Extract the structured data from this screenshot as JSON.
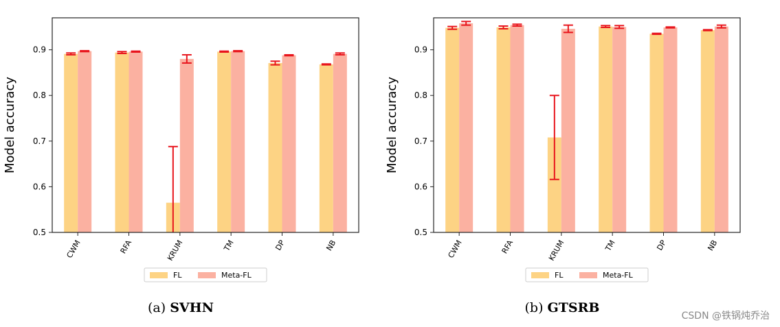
{
  "colors": {
    "fl": "#fdd384",
    "meta_fl": "#fbb1a1",
    "error": "#e8141c"
  },
  "legend_labels": [
    "FL",
    "Meta-FL"
  ],
  "chart_data": [
    {
      "type": "bar",
      "caption_label": "(a)",
      "caption_title": "SVHN",
      "ylabel": "Model accuracy",
      "ylim": [
        0.5,
        0.97
      ],
      "yticks": [
        0.5,
        0.6,
        0.7,
        0.8,
        0.9
      ],
      "legend_position": "bottom-center",
      "categories": [
        "CWM",
        "RFA",
        "KRUM",
        "TM",
        "DP",
        "NB"
      ],
      "series": [
        {
          "name": "FL",
          "values": [
            0.891,
            0.894,
            0.565,
            0.896,
            0.871,
            0.868
          ],
          "errors": [
            0.002,
            0.002,
            0.123,
            0.001,
            0.004,
            0.001
          ]
        },
        {
          "name": "Meta-FL",
          "values": [
            0.897,
            0.896,
            0.88,
            0.897,
            0.888,
            0.891
          ],
          "errors": [
            0.001,
            0.001,
            0.009,
            0.001,
            0.001,
            0.002
          ]
        }
      ]
    },
    {
      "type": "bar",
      "caption_label": "(b)",
      "caption_title": "GTSRB",
      "ylabel": "Model accuracy",
      "ylim": [
        0.5,
        0.97
      ],
      "yticks": [
        0.5,
        0.6,
        0.7,
        0.8,
        0.9
      ],
      "legend_position": "bottom-center",
      "categories": [
        "CWM",
        "RFA",
        "KRUM",
        "TM",
        "DP",
        "NB"
      ],
      "series": [
        {
          "name": "FL",
          "values": [
            0.948,
            0.949,
            0.708,
            0.951,
            0.935,
            0.943
          ],
          "errors": [
            0.003,
            0.003,
            0.092,
            0.002,
            0.001,
            0.001
          ]
        },
        {
          "name": "Meta-FL",
          "values": [
            0.958,
            0.954,
            0.946,
            0.95,
            0.949,
            0.951
          ],
          "errors": [
            0.004,
            0.002,
            0.008,
            0.003,
            0.001,
            0.003
          ]
        }
      ]
    }
  ],
  "watermark": "CSDN @铁锅炖乔治"
}
